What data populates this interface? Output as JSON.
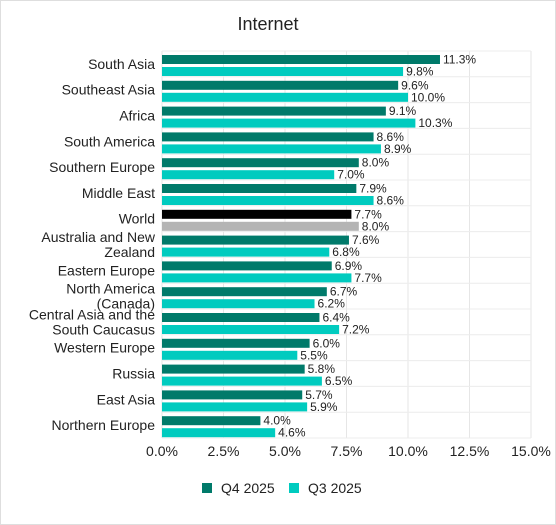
{
  "chart_data": {
    "type": "bar",
    "orientation": "horizontal",
    "title": "Internet",
    "xlabel": "",
    "ylabel": "",
    "xlim": [
      0,
      15
    ],
    "xticks": [
      "0.0%",
      "2.5%",
      "5.0%",
      "7.5%",
      "10.0%",
      "12.5%",
      "15.0%"
    ],
    "grid": true,
    "legend": "bottom-center",
    "categories": [
      "South Asia",
      "Southeast Asia",
      "Africa",
      "South America",
      "Southern Europe",
      "Middle East",
      "World",
      "Australia and New Zealand",
      "Eastern Europe",
      "North America (Canada)",
      "Central Asia and the South Caucasus",
      "Western Europe",
      "Russia",
      "East Asia",
      "Northern Europe"
    ],
    "category_lines": [
      [
        "South Asia"
      ],
      [
        "Southeast Asia"
      ],
      [
        "Africa"
      ],
      [
        "South America"
      ],
      [
        "Southern Europe"
      ],
      [
        "Middle East"
      ],
      [
        "World"
      ],
      [
        "Australia and New",
        "Zealand"
      ],
      [
        "Eastern Europe"
      ],
      [
        "North America",
        "(Canada)"
      ],
      [
        "Central Asia and the",
        "South Caucasus"
      ],
      [
        "Western Europe"
      ],
      [
        "Russia"
      ],
      [
        "East Asia"
      ],
      [
        "Northern Europe"
      ]
    ],
    "series": [
      {
        "name": "Q4 2025",
        "color": "#007a6a",
        "values": [
          11.3,
          9.6,
          9.1,
          8.6,
          8.0,
          7.9,
          7.7,
          7.6,
          6.9,
          6.7,
          6.4,
          6.0,
          5.8,
          5.7,
          4.0
        ],
        "labels": [
          "11.3%",
          "9.6%",
          "9.1%",
          "8.6%",
          "8.0%",
          "7.9%",
          "7.7%",
          "7.6%",
          "6.9%",
          "6.7%",
          "6.4%",
          "6.0%",
          "5.8%",
          "5.7%",
          "4.0%"
        ]
      },
      {
        "name": "Q3 2025",
        "color": "#00cbbf",
        "values": [
          9.8,
          10.0,
          10.3,
          8.9,
          7.0,
          8.6,
          8.0,
          6.8,
          7.7,
          6.2,
          7.2,
          5.5,
          6.5,
          5.9,
          4.6
        ],
        "labels": [
          "9.8%",
          "10.0%",
          "10.3%",
          "8.9%",
          "7.0%",
          "8.6%",
          "8.0%",
          "6.8%",
          "7.7%",
          "6.2%",
          "7.2%",
          "5.5%",
          "6.5%",
          "5.9%",
          "4.6%"
        ]
      }
    ],
    "highlight": {
      "category": "World",
      "colors": [
        "#000000",
        "#b4b4b4"
      ]
    }
  }
}
